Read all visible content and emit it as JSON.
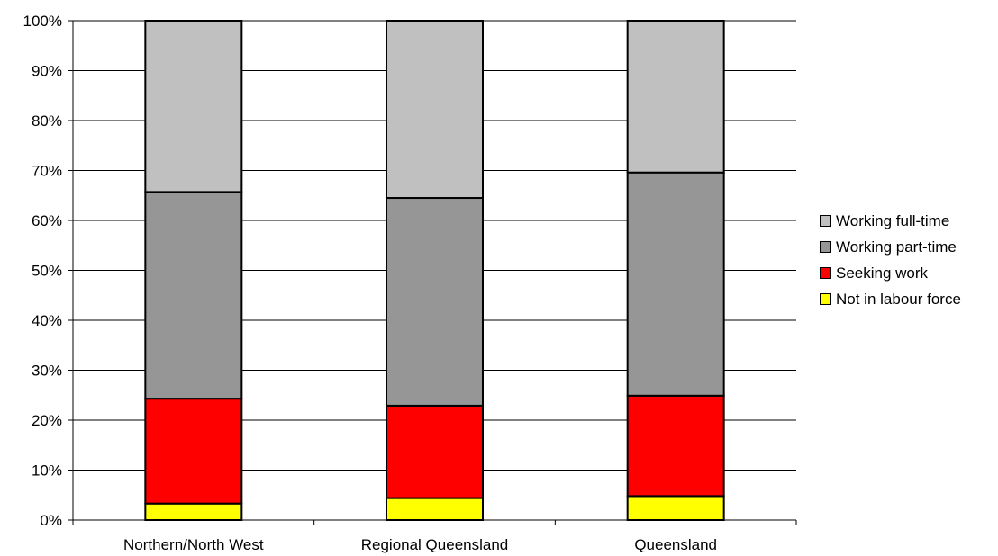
{
  "chart_data": {
    "type": "bar",
    "stacked": true,
    "percent": true,
    "categories": [
      "Northern/North West",
      "Regional Queensland",
      "Queensland"
    ],
    "series": [
      {
        "name": "Not in labour force",
        "color": "#ffff00",
        "values": [
          3.3,
          4.4,
          4.8
        ]
      },
      {
        "name": "Seeking work",
        "color": "#ff0000",
        "values": [
          21.0,
          18.5,
          20.1
        ]
      },
      {
        "name": "Working part-time",
        "color": "#969696",
        "values": [
          41.4,
          41.6,
          44.7
        ]
      },
      {
        "name": "Working full-time",
        "color": "#c0c0c0",
        "values": [
          34.3,
          35.5,
          30.4
        ]
      }
    ],
    "yticks": [
      "0%",
      "10%",
      "20%",
      "30%",
      "40%",
      "50%",
      "60%",
      "70%",
      "80%",
      "90%",
      "100%"
    ],
    "ylim": [
      0,
      100
    ],
    "grid": true,
    "legend_position": "right",
    "legend_order": [
      "Working full-time",
      "Working part-time",
      "Seeking work",
      "Not in labour force"
    ]
  }
}
